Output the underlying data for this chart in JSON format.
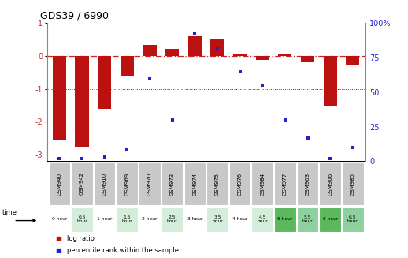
{
  "title": "GDS39 / 6990",
  "samples": [
    "GSM940",
    "GSM942",
    "GSM910",
    "GSM969",
    "GSM970",
    "GSM973",
    "GSM974",
    "GSM975",
    "GSM976",
    "GSM984",
    "GSM977",
    "GSM903",
    "GSM906",
    "GSM985"
  ],
  "time_labels": [
    "0 hour",
    "0.5\nhour",
    "1 hour",
    "1.5\nhour",
    "2 hour",
    "2.5\nhour",
    "3 hour",
    "3.5\nhour",
    "4 hour",
    "4.5\nhour",
    "5 hour",
    "5.5\nhour",
    "6 hour",
    "6.5\nhour"
  ],
  "log_ratio": [
    -2.55,
    -2.75,
    -1.6,
    -0.6,
    0.35,
    0.22,
    0.62,
    0.52,
    0.05,
    -0.13,
    0.08,
    -0.18,
    -1.5,
    -0.28
  ],
  "percentile": [
    2,
    2,
    3,
    8,
    60,
    30,
    93,
    82,
    65,
    55,
    30,
    17,
    2,
    10
  ],
  "time_colors": [
    "#ffffff",
    "#d4edda",
    "#ffffff",
    "#d4edda",
    "#ffffff",
    "#d4edda",
    "#ffffff",
    "#d4edda",
    "#ffffff",
    "#d4edda",
    "#5cb85c",
    "#8fd19e",
    "#5cb85c",
    "#8fd19e"
  ],
  "bar_color": "#bb1111",
  "dot_color": "#2222cc",
  "zero_line_color": "#cc2222",
  "dotted_line_color": "#333333",
  "ylim_left": [
    -3.2,
    1.0
  ],
  "ylim_right": [
    0,
    100
  ],
  "yticks_left": [
    -3,
    -2,
    -1,
    0,
    1
  ],
  "yticks_right": [
    0,
    25,
    50,
    75,
    100
  ],
  "ytick_labels_right": [
    "0",
    "25",
    "50",
    "75",
    "100%"
  ],
  "header_bg": "#c8c8c8",
  "background_color": "#ffffff",
  "bar_width": 0.6
}
